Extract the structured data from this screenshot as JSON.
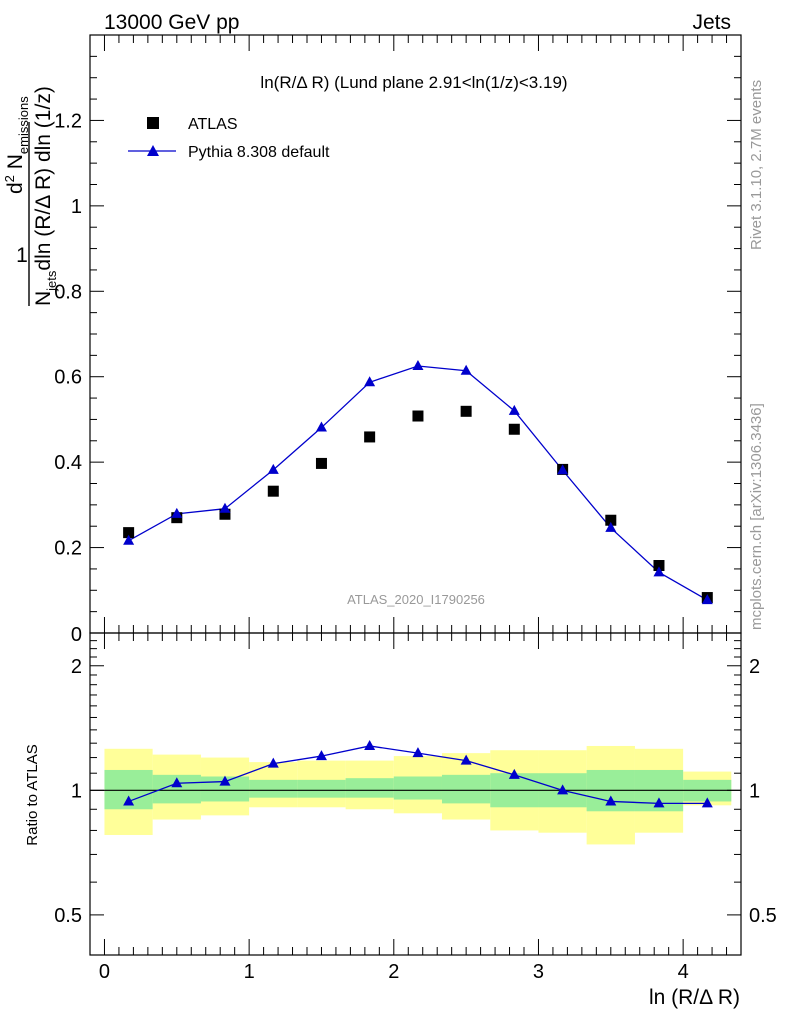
{
  "header": {
    "left_label": "13000 GeV pp",
    "right_label": "Jets"
  },
  "side_labels": {
    "rivet": "Rivet 3.1.10,  2.7M events",
    "mcplots": "mcplots.cern.ch [arXiv:1306.3436]"
  },
  "colors": {
    "data": "#000000",
    "mc": "#0000cc",
    "band_inner": "#99ee99",
    "band_outer": "#ffff99"
  },
  "chart_data": [
    {
      "type": "scatter",
      "title": "ln(R/Δ R) (Lund plane 2.91<ln(1/z)<3.19)",
      "ylabel_parts": {
        "one": "1",
        "n": "N",
        "jets_sub": "jets",
        "dln": "dln (R/Δ R) dln (1/z)",
        "d2": "d",
        "d2_sup": "2",
        "nem": "N",
        "em_sub": "emissions"
      },
      "xlim": [
        -0.1,
        4.4
      ],
      "ylim": [
        0,
        1.4
      ],
      "yticks": [
        0.2,
        0.4,
        0.6,
        0.8,
        1,
        1.2
      ],
      "yticklabels": [
        "0.2",
        "0.4",
        "0.6",
        "0.8",
        "1",
        "1.2"
      ],
      "zero_label": "0",
      "legend": {
        "placement": "top-left",
        "data_label": "ATLAS",
        "mc_label": "Pythia 8.308 default"
      },
      "watermark": "ATLAS_2020_I1790256",
      "x": [
        0.167,
        0.5,
        0.833,
        1.167,
        1.5,
        1.833,
        2.167,
        2.5,
        2.833,
        3.167,
        3.5,
        3.833,
        4.167
      ],
      "series": [
        {
          "name": "ATLAS",
          "values": [
            0.235,
            0.27,
            0.278,
            0.332,
            0.397,
            0.459,
            0.508,
            0.519,
            0.477,
            0.383,
            0.264,
            0.158,
            0.083
          ]
        },
        {
          "name": "Pythia 8.308 default",
          "values": [
            0.216,
            0.279,
            0.291,
            0.382,
            0.481,
            0.587,
            0.625,
            0.614,
            0.52,
            0.381,
            0.246,
            0.142,
            0.077
          ]
        }
      ]
    },
    {
      "type": "line",
      "ylabel": "Ratio to ATLAS",
      "xlabel": "ln (R/Δ R)",
      "xlim": [
        -0.1,
        4.4
      ],
      "xticks": [
        0,
        1,
        2,
        3,
        4
      ],
      "xticklabels": [
        "0",
        "1",
        "2",
        "3",
        "4"
      ],
      "ylim": [
        0.4,
        2.4
      ],
      "yticks": [
        0.5,
        1,
        2
      ],
      "yticklabels": [
        "0.5",
        "1",
        "2"
      ],
      "bin_edges": [
        0,
        0.333,
        0.667,
        1.0,
        1.333,
        1.667,
        2.0,
        2.333,
        2.667,
        3.0,
        3.333,
        3.667,
        4.0,
        4.333
      ],
      "band_inner": {
        "low": [
          0.9,
          0.93,
          0.94,
          0.96,
          0.96,
          0.96,
          0.95,
          0.93,
          0.91,
          0.91,
          0.89,
          0.89,
          0.94
        ],
        "high": [
          1.12,
          1.09,
          1.08,
          1.06,
          1.06,
          1.07,
          1.08,
          1.09,
          1.1,
          1.1,
          1.12,
          1.12,
          1.06
        ]
      },
      "band_outer": {
        "low": [
          0.78,
          0.85,
          0.87,
          0.91,
          0.91,
          0.9,
          0.88,
          0.85,
          0.8,
          0.79,
          0.74,
          0.79,
          0.92
        ],
        "high": [
          1.26,
          1.22,
          1.2,
          1.17,
          1.18,
          1.18,
          1.21,
          1.23,
          1.25,
          1.25,
          1.28,
          1.26,
          1.11
        ]
      },
      "x": [
        0.167,
        0.5,
        0.833,
        1.167,
        1.5,
        1.833,
        2.167,
        2.5,
        2.833,
        3.167,
        3.5,
        3.833,
        4.167
      ],
      "series": [
        {
          "name": "Pythia 8.308 default",
          "values": [
            0.94,
            1.04,
            1.05,
            1.16,
            1.21,
            1.28,
            1.23,
            1.18,
            1.09,
            1.0,
            0.94,
            0.93,
            0.93
          ]
        }
      ]
    }
  ]
}
